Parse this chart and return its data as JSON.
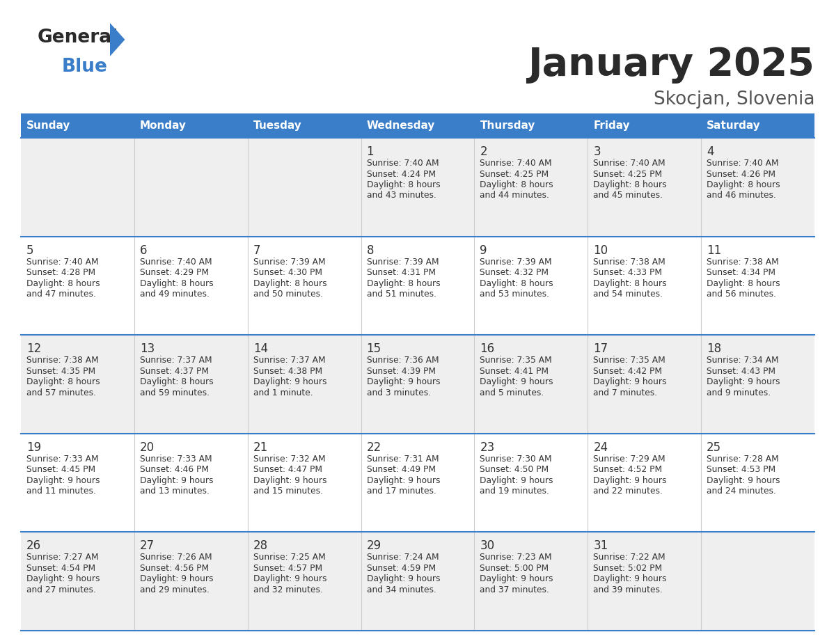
{
  "title": "January 2025",
  "subtitle": "Skocjan, Slovenia",
  "header_bg": "#3A7DC9",
  "header_text": "#FFFFFF",
  "row_bg_odd": "#EFEFEF",
  "row_bg_even": "#FFFFFF",
  "border_color": "#3A7DC9",
  "day_names": [
    "Sunday",
    "Monday",
    "Tuesday",
    "Wednesday",
    "Thursday",
    "Friday",
    "Saturday"
  ],
  "days": [
    {
      "day": 1,
      "col": 3,
      "row": 0,
      "sunrise": "7:40 AM",
      "sunset": "4:24 PM",
      "daylight_h": "8 hours",
      "daylight_m": "43 minutes."
    },
    {
      "day": 2,
      "col": 4,
      "row": 0,
      "sunrise": "7:40 AM",
      "sunset": "4:25 PM",
      "daylight_h": "8 hours",
      "daylight_m": "44 minutes."
    },
    {
      "day": 3,
      "col": 5,
      "row": 0,
      "sunrise": "7:40 AM",
      "sunset": "4:25 PM",
      "daylight_h": "8 hours",
      "daylight_m": "45 minutes."
    },
    {
      "day": 4,
      "col": 6,
      "row": 0,
      "sunrise": "7:40 AM",
      "sunset": "4:26 PM",
      "daylight_h": "8 hours",
      "daylight_m": "46 minutes."
    },
    {
      "day": 5,
      "col": 0,
      "row": 1,
      "sunrise": "7:40 AM",
      "sunset": "4:28 PM",
      "daylight_h": "8 hours",
      "daylight_m": "47 minutes."
    },
    {
      "day": 6,
      "col": 1,
      "row": 1,
      "sunrise": "7:40 AM",
      "sunset": "4:29 PM",
      "daylight_h": "8 hours",
      "daylight_m": "49 minutes."
    },
    {
      "day": 7,
      "col": 2,
      "row": 1,
      "sunrise": "7:39 AM",
      "sunset": "4:30 PM",
      "daylight_h": "8 hours",
      "daylight_m": "50 minutes."
    },
    {
      "day": 8,
      "col": 3,
      "row": 1,
      "sunrise": "7:39 AM",
      "sunset": "4:31 PM",
      "daylight_h": "8 hours",
      "daylight_m": "51 minutes."
    },
    {
      "day": 9,
      "col": 4,
      "row": 1,
      "sunrise": "7:39 AM",
      "sunset": "4:32 PM",
      "daylight_h": "8 hours",
      "daylight_m": "53 minutes."
    },
    {
      "day": 10,
      "col": 5,
      "row": 1,
      "sunrise": "7:38 AM",
      "sunset": "4:33 PM",
      "daylight_h": "8 hours",
      "daylight_m": "54 minutes."
    },
    {
      "day": 11,
      "col": 6,
      "row": 1,
      "sunrise": "7:38 AM",
      "sunset": "4:34 PM",
      "daylight_h": "8 hours",
      "daylight_m": "56 minutes."
    },
    {
      "day": 12,
      "col": 0,
      "row": 2,
      "sunrise": "7:38 AM",
      "sunset": "4:35 PM",
      "daylight_h": "8 hours",
      "daylight_m": "57 minutes."
    },
    {
      "day": 13,
      "col": 1,
      "row": 2,
      "sunrise": "7:37 AM",
      "sunset": "4:37 PM",
      "daylight_h": "8 hours",
      "daylight_m": "59 minutes."
    },
    {
      "day": 14,
      "col": 2,
      "row": 2,
      "sunrise": "7:37 AM",
      "sunset": "4:38 PM",
      "daylight_h": "9 hours",
      "daylight_m": "1 minute."
    },
    {
      "day": 15,
      "col": 3,
      "row": 2,
      "sunrise": "7:36 AM",
      "sunset": "4:39 PM",
      "daylight_h": "9 hours",
      "daylight_m": "3 minutes."
    },
    {
      "day": 16,
      "col": 4,
      "row": 2,
      "sunrise": "7:35 AM",
      "sunset": "4:41 PM",
      "daylight_h": "9 hours",
      "daylight_m": "5 minutes."
    },
    {
      "day": 17,
      "col": 5,
      "row": 2,
      "sunrise": "7:35 AM",
      "sunset": "4:42 PM",
      "daylight_h": "9 hours",
      "daylight_m": "7 minutes."
    },
    {
      "day": 18,
      "col": 6,
      "row": 2,
      "sunrise": "7:34 AM",
      "sunset": "4:43 PM",
      "daylight_h": "9 hours",
      "daylight_m": "9 minutes."
    },
    {
      "day": 19,
      "col": 0,
      "row": 3,
      "sunrise": "7:33 AM",
      "sunset": "4:45 PM",
      "daylight_h": "9 hours",
      "daylight_m": "11 minutes."
    },
    {
      "day": 20,
      "col": 1,
      "row": 3,
      "sunrise": "7:33 AM",
      "sunset": "4:46 PM",
      "daylight_h": "9 hours",
      "daylight_m": "13 minutes."
    },
    {
      "day": 21,
      "col": 2,
      "row": 3,
      "sunrise": "7:32 AM",
      "sunset": "4:47 PM",
      "daylight_h": "9 hours",
      "daylight_m": "15 minutes."
    },
    {
      "day": 22,
      "col": 3,
      "row": 3,
      "sunrise": "7:31 AM",
      "sunset": "4:49 PM",
      "daylight_h": "9 hours",
      "daylight_m": "17 minutes."
    },
    {
      "day": 23,
      "col": 4,
      "row": 3,
      "sunrise": "7:30 AM",
      "sunset": "4:50 PM",
      "daylight_h": "9 hours",
      "daylight_m": "19 minutes."
    },
    {
      "day": 24,
      "col": 5,
      "row": 3,
      "sunrise": "7:29 AM",
      "sunset": "4:52 PM",
      "daylight_h": "9 hours",
      "daylight_m": "22 minutes."
    },
    {
      "day": 25,
      "col": 6,
      "row": 3,
      "sunrise": "7:28 AM",
      "sunset": "4:53 PM",
      "daylight_h": "9 hours",
      "daylight_m": "24 minutes."
    },
    {
      "day": 26,
      "col": 0,
      "row": 4,
      "sunrise": "7:27 AM",
      "sunset": "4:54 PM",
      "daylight_h": "9 hours",
      "daylight_m": "27 minutes."
    },
    {
      "day": 27,
      "col": 1,
      "row": 4,
      "sunrise": "7:26 AM",
      "sunset": "4:56 PM",
      "daylight_h": "9 hours",
      "daylight_m": "29 minutes."
    },
    {
      "day": 28,
      "col": 2,
      "row": 4,
      "sunrise": "7:25 AM",
      "sunset": "4:57 PM",
      "daylight_h": "9 hours",
      "daylight_m": "32 minutes."
    },
    {
      "day": 29,
      "col": 3,
      "row": 4,
      "sunrise": "7:24 AM",
      "sunset": "4:59 PM",
      "daylight_h": "9 hours",
      "daylight_m": "34 minutes."
    },
    {
      "day": 30,
      "col": 4,
      "row": 4,
      "sunrise": "7:23 AM",
      "sunset": "5:00 PM",
      "daylight_h": "9 hours",
      "daylight_m": "37 minutes."
    },
    {
      "day": 31,
      "col": 5,
      "row": 4,
      "sunrise": "7:22 AM",
      "sunset": "5:02 PM",
      "daylight_h": "9 hours",
      "daylight_m": "39 minutes."
    }
  ],
  "logo_color_general": "#2a2a2a",
  "logo_color_blue": "#3A7DC9",
  "title_color": "#2a2a2a",
  "subtitle_color": "#555555",
  "cell_text_color": "#333333",
  "cell_num_color": "#333333",
  "num_rows": 5,
  "fig_width": 11.88,
  "fig_height": 9.18,
  "dpi": 100
}
